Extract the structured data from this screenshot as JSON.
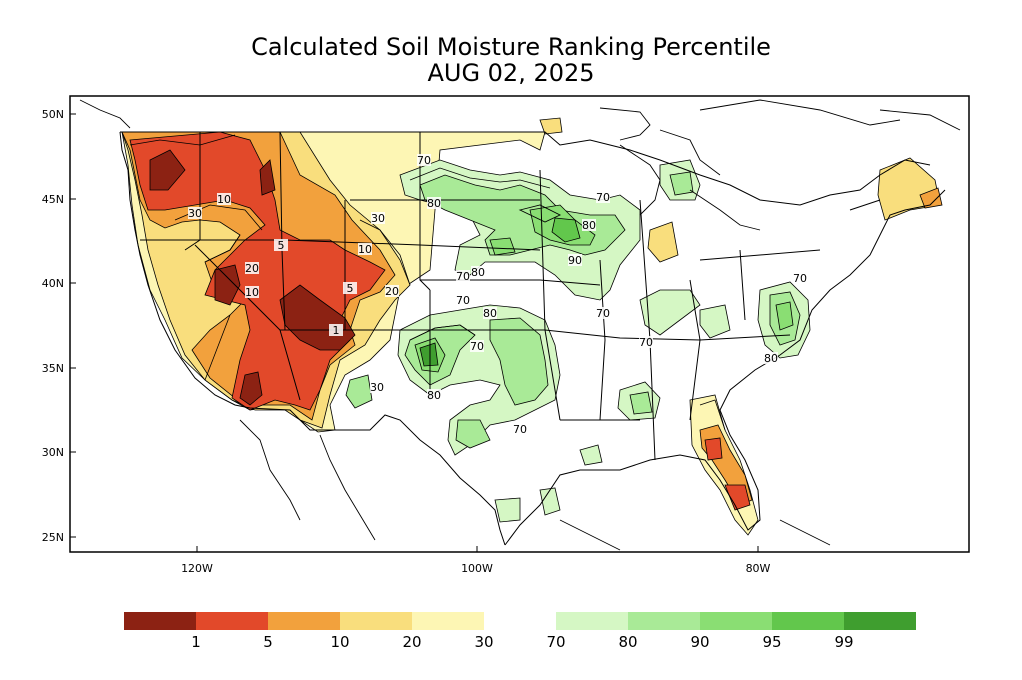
{
  "title": {
    "line1": "Calculated Soil Moisture Ranking Percentile",
    "line2": "AUG 02, 2025"
  },
  "axes": {
    "lat_ticks": [
      "50N",
      "45N",
      "40N",
      "35N",
      "30N",
      "25N"
    ],
    "lon_ticks": [
      "120W",
      "100W",
      "80W"
    ],
    "lat_range": [
      24,
      50.5
    ],
    "lon_range": [
      -129,
      -65
    ]
  },
  "contour_labels": [
    "70",
    "80",
    "30",
    "10",
    "5",
    "20",
    "10",
    "5",
    "20",
    "1",
    "30",
    "10",
    "30",
    "70",
    "80",
    "70",
    "80",
    "90",
    "80",
    "70",
    "70",
    "70",
    "70",
    "80",
    "70",
    "80",
    "70"
  ],
  "legend": {
    "dry": [
      {
        "color": "#8c2213",
        "label": "1"
      },
      {
        "color": "#e2492a",
        "label": "5"
      },
      {
        "color": "#f2a13d",
        "label": "10"
      },
      {
        "color": "#f9de7d",
        "label": "20"
      },
      {
        "color": "#fdf6b4",
        "label": "30"
      }
    ],
    "wet": [
      {
        "color": "#d5f7c4",
        "label": "70"
      },
      {
        "color": "#a9ea97",
        "label": "80"
      },
      {
        "color": "#8ade73",
        "label": "90"
      },
      {
        "color": "#62c74c",
        "label": "95"
      },
      {
        "color": "#3f9e2f",
        "label": "99"
      }
    ]
  },
  "colors": {
    "p1": "#8c2213",
    "p5": "#e2492a",
    "p10": "#f2a13d",
    "p20": "#f9de7d",
    "p30": "#fdf6b4",
    "p70": "#d5f7c4",
    "p80": "#a9ea97",
    "p90": "#8ade73",
    "p95": "#62c74c",
    "p99": "#3f9e2f"
  }
}
